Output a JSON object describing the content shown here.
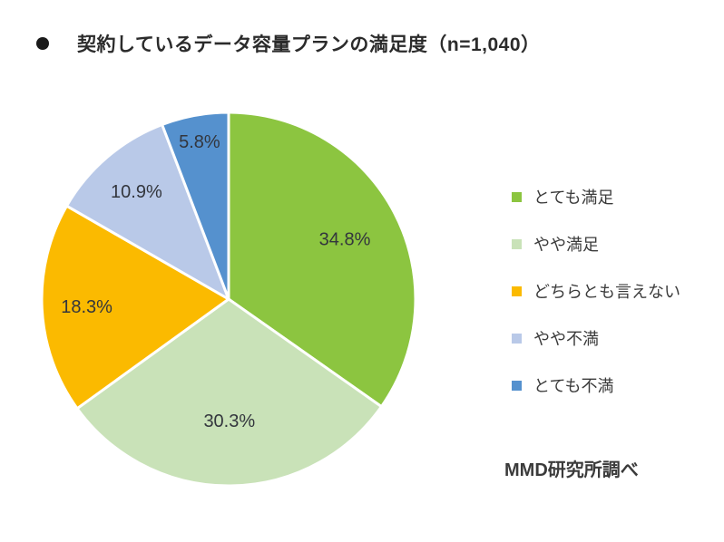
{
  "title": {
    "text": "契約しているデータ容量プランの満足度（n=1,040）"
  },
  "chart_data": {
    "type": "pie",
    "title": "契約しているデータ容量プランの満足度",
    "sample_size_label": "n=1,040",
    "labels": [
      "とても満足",
      "やや満足",
      "どちらとも言えない",
      "やや不満",
      "とても不満"
    ],
    "values": [
      34.8,
      30.3,
      18.3,
      10.9,
      5.8
    ],
    "value_labels": [
      "34.8%",
      "30.3%",
      "18.3%",
      "10.9%",
      "5.8%"
    ],
    "colors": [
      "#8CC540",
      "#C9E2B8",
      "#FBBA00",
      "#B9C9E8",
      "#5591CE"
    ],
    "start_angle_deg": 0,
    "direction": "clockwise",
    "legend_position": "right",
    "source_note": "MMD研究所調べ"
  }
}
